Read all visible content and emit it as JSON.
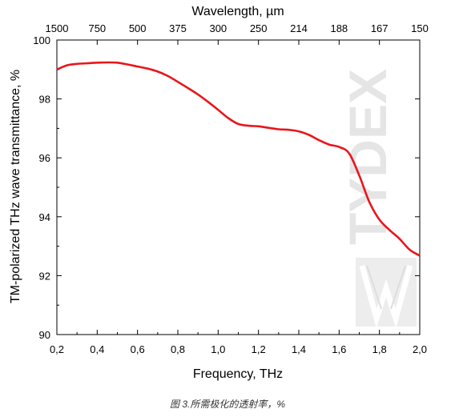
{
  "chart_data": {
    "type": "line",
    "title": "",
    "xlabel": "Frequency, THz",
    "ylabel": "TM-polarized THz wave transmittance, %",
    "top_xlabel": "Wavelength, µm",
    "xlim": [
      0.2,
      2.0
    ],
    "ylim": [
      90,
      100
    ],
    "x_ticks": [
      0.2,
      0.4,
      0.6,
      0.8,
      1.0,
      1.2,
      1.4,
      1.6,
      1.8,
      2.0
    ],
    "x_tick_labels": [
      "0,2",
      "0,4",
      "0,6",
      "0,8",
      "1,0",
      "1,2",
      "1,4",
      "1,6",
      "1,8",
      "2,0"
    ],
    "y_ticks": [
      90,
      92,
      94,
      96,
      98,
      100
    ],
    "y_tick_labels": [
      "90",
      "92",
      "94",
      "96",
      "98",
      "100"
    ],
    "top_ticks": [
      {
        "label": "1500",
        "freq": 0.2
      },
      {
        "label": "750",
        "freq": 0.4
      },
      {
        "label": "500",
        "freq": 0.6
      },
      {
        "label": "375",
        "freq": 0.8
      },
      {
        "label": "300",
        "freq": 1.0
      },
      {
        "label": "250",
        "freq": 1.2
      },
      {
        "label": "214",
        "freq": 1.4
      },
      {
        "label": "188",
        "freq": 1.6
      },
      {
        "label": "167",
        "freq": 1.8
      },
      {
        "label": "150",
        "freq": 2.0
      }
    ],
    "grid": false,
    "legend": "none",
    "series": [
      {
        "color": "#e8161b",
        "x": [
          0.2,
          0.25,
          0.3,
          0.35,
          0.4,
          0.45,
          0.5,
          0.55,
          0.6,
          0.65,
          0.7,
          0.75,
          0.8,
          0.85,
          0.9,
          0.95,
          1.0,
          1.05,
          1.1,
          1.15,
          1.2,
          1.25,
          1.3,
          1.35,
          1.4,
          1.45,
          1.5,
          1.55,
          1.6,
          1.65,
          1.7,
          1.75,
          1.8,
          1.85,
          1.9,
          1.95,
          2.0
        ],
        "y": [
          99.0,
          99.14,
          99.19,
          99.21,
          99.23,
          99.24,
          99.23,
          99.17,
          99.1,
          99.03,
          98.93,
          98.78,
          98.58,
          98.37,
          98.15,
          97.9,
          97.63,
          97.35,
          97.15,
          97.09,
          97.07,
          97.02,
          96.97,
          96.95,
          96.9,
          96.78,
          96.6,
          96.45,
          96.37,
          96.15,
          95.4,
          94.5,
          93.9,
          93.55,
          93.25,
          92.88,
          92.68
        ]
      }
    ]
  },
  "watermark": {
    "text": "TYDEX"
  },
  "caption": "图 3.所需极化的透射率，%"
}
